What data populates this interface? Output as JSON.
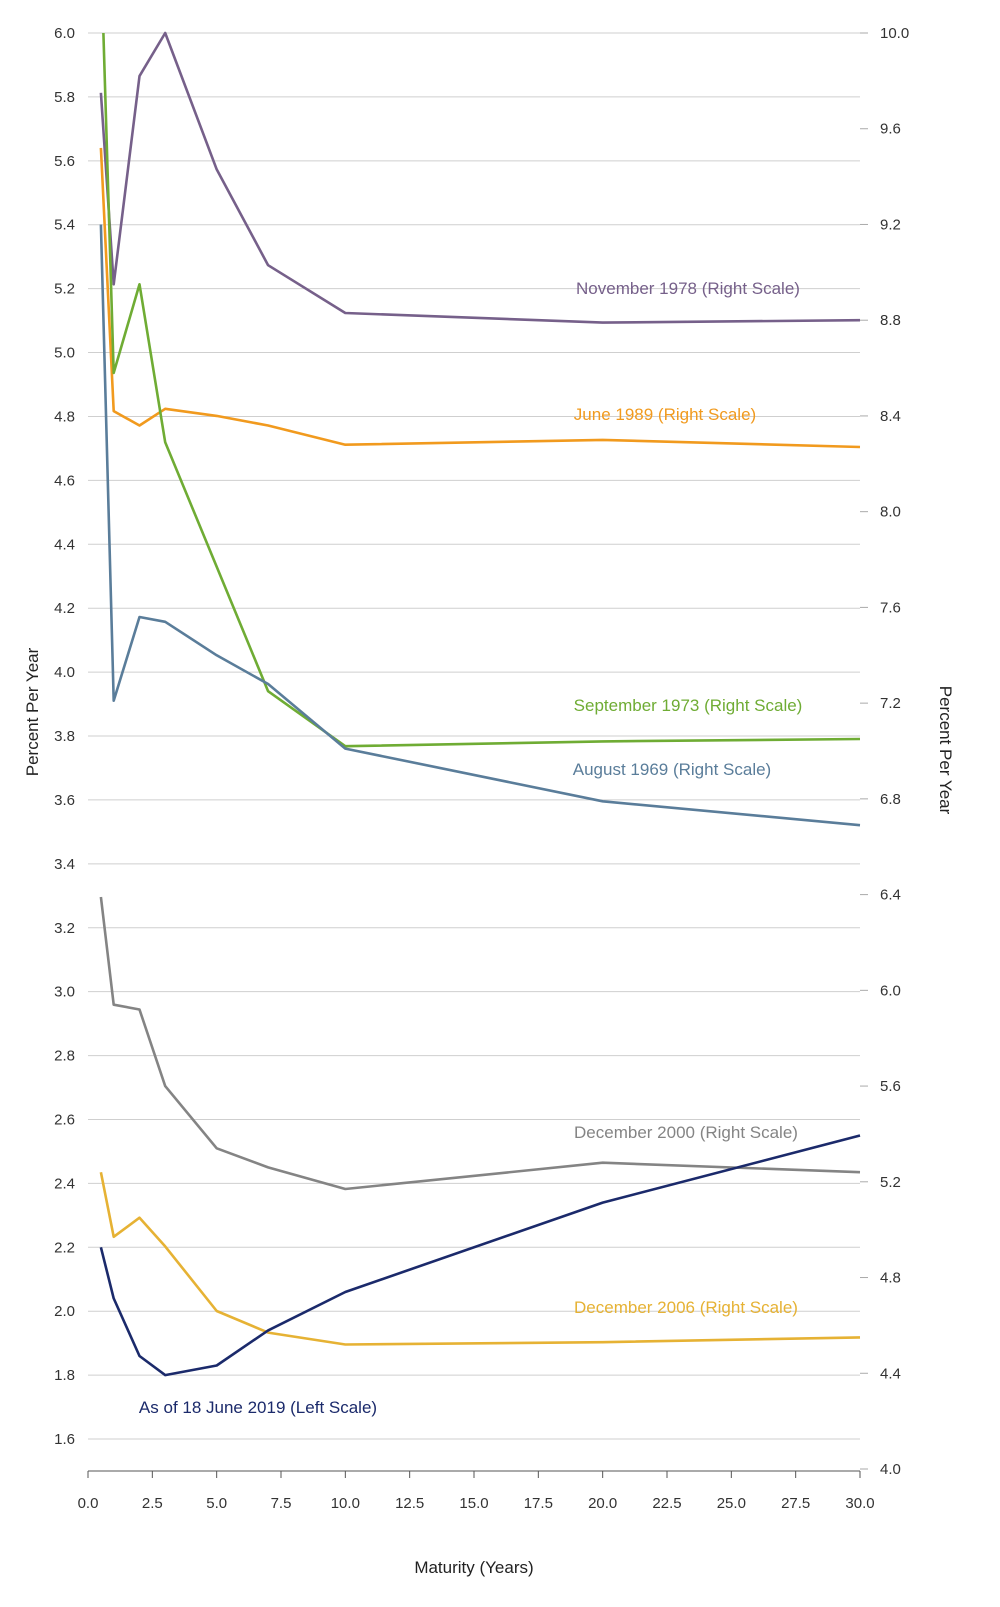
{
  "chart_data": {
    "type": "line",
    "xlabel": "Maturity (Years)",
    "ylabel_left": "Percent Per Year",
    "ylabel_right": "Percent Per Year",
    "xlim": [
      0,
      30
    ],
    "ylim_left": [
      1.5,
      6.0
    ],
    "ylim_right": [
      4.0,
      10.0
    ],
    "grid": true,
    "x_ticks": [
      "0.0",
      "2.5",
      "5.0",
      "7.5",
      "10.0",
      "12.5",
      "15.0",
      "17.5",
      "20.0",
      "22.5",
      "25.0",
      "27.5",
      "30.0"
    ],
    "y_ticks_left": [
      "1.6",
      "1.8",
      "2.0",
      "2.2",
      "2.4",
      "2.6",
      "2.8",
      "3.0",
      "3.2",
      "3.4",
      "3.6",
      "3.8",
      "4.0",
      "4.2",
      "4.4",
      "4.6",
      "4.8",
      "5.0",
      "5.2",
      "5.4",
      "5.6",
      "5.8",
      "6.0"
    ],
    "y_ticks_right": [
      "4.0",
      "4.4",
      "4.8",
      "5.2",
      "5.6",
      "6.0",
      "6.4",
      "6.8",
      "7.2",
      "7.6",
      "8.0",
      "8.4",
      "8.8",
      "9.2",
      "9.6",
      "10.0"
    ],
    "series": [
      {
        "name": "November 1978 (Right Scale)",
        "axis": "right",
        "color": "#76608a",
        "x": [
          0.5,
          1,
          2,
          3,
          5,
          7,
          10,
          20,
          30
        ],
        "y": [
          9.75,
          8.95,
          9.82,
          10.0,
          9.43,
          9.03,
          8.83,
          8.79,
          8.8
        ]
      },
      {
        "name": "June 1989 (Right Scale)",
        "axis": "right",
        "color": "#f19a1e",
        "x": [
          0.5,
          1,
          2,
          3,
          5,
          7,
          10,
          20,
          30
        ],
        "y": [
          9.52,
          8.42,
          8.36,
          8.43,
          8.4,
          8.36,
          8.28,
          8.3,
          8.27
        ]
      },
      {
        "name": "September 1973 (Right Scale)",
        "axis": "right",
        "color": "#6fac34",
        "x": [
          0.6,
          1,
          2,
          3,
          5,
          7,
          10,
          20,
          30
        ],
        "y": [
          10.0,
          8.58,
          8.95,
          8.29,
          7.77,
          7.25,
          7.02,
          7.04,
          7.05
        ]
      },
      {
        "name": "August 1969 (Right Scale)",
        "axis": "right",
        "color": "#5a7d9a",
        "x": [
          0.5,
          1,
          2,
          3,
          5,
          7,
          10,
          20,
          30
        ],
        "y": [
          9.2,
          7.21,
          7.56,
          7.54,
          7.4,
          7.28,
          7.01,
          6.79,
          6.69
        ]
      },
      {
        "name": "December 2000 (Right Scale)",
        "axis": "right",
        "color": "#848484",
        "x": [
          0.5,
          1,
          2,
          3,
          5,
          7,
          10,
          20,
          30
        ],
        "y": [
          6.39,
          5.94,
          5.92,
          5.6,
          5.34,
          5.26,
          5.17,
          5.28,
          5.24
        ]
      },
      {
        "name": "December 2006 (Right Scale)",
        "axis": "right",
        "color": "#e6b234",
        "x": [
          0.5,
          1,
          2,
          3,
          5,
          7,
          10,
          20,
          30
        ],
        "y": [
          5.24,
          4.97,
          5.05,
          4.93,
          4.66,
          4.57,
          4.52,
          4.53,
          4.55
        ]
      },
      {
        "name": "As of 18 June 2019 (Left Scale)",
        "axis": "left",
        "color": "#1b2a6b",
        "x": [
          0.5,
          1,
          2,
          3,
          5,
          7,
          10,
          20,
          30
        ],
        "y": [
          2.2,
          2.04,
          1.86,
          1.8,
          1.83,
          1.94,
          2.06,
          2.34,
          2.55
        ]
      }
    ]
  }
}
